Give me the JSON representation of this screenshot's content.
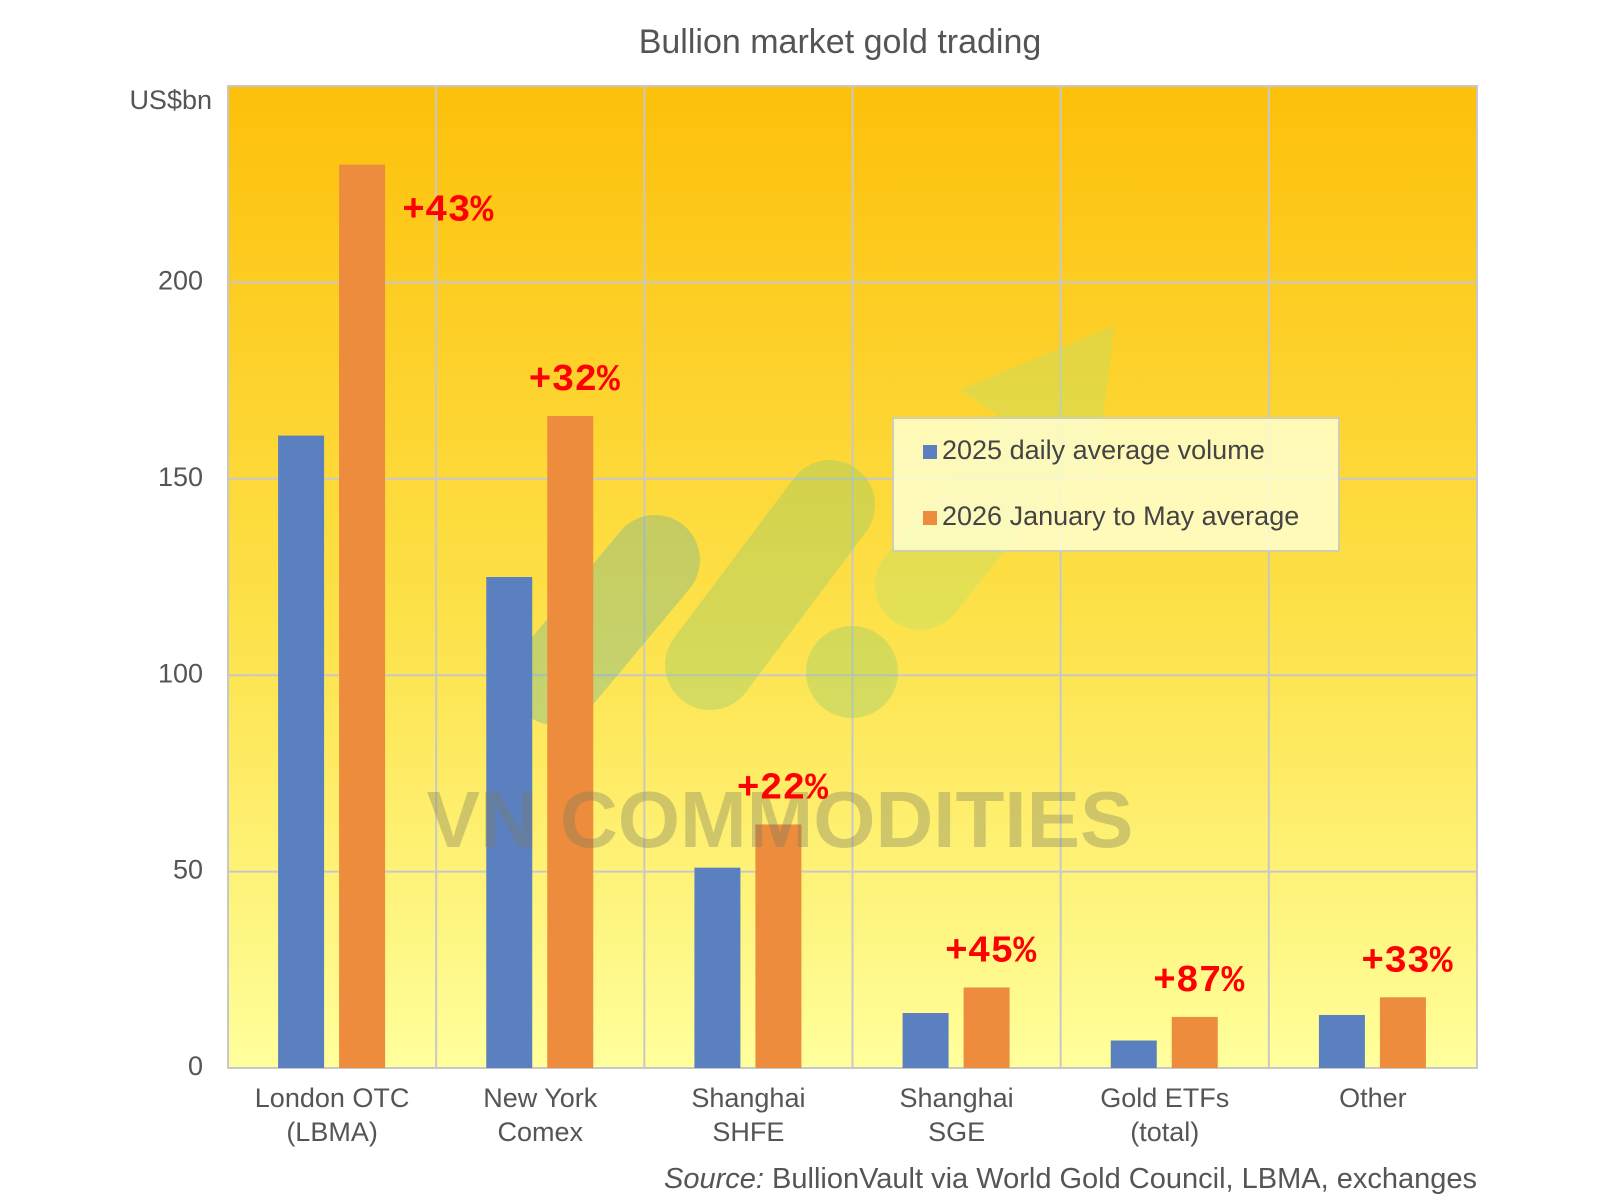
{
  "chart_data": {
    "type": "bar",
    "title": "Bullion market gold trading",
    "y_label": "US$bn",
    "categories": [
      "London OTC\n(LBMA)",
      "New York\nComex",
      "Shanghai\nSHFE",
      "Shanghai\nSGE",
      "Gold ETFs\n(total)",
      "Other"
    ],
    "series": [
      {
        "name": "2025 daily average volume",
        "color": "#5b80c0",
        "values": [
          161,
          125,
          51,
          14,
          7,
          13.5
        ]
      },
      {
        "name": "2026 January to May average",
        "color": "#ed8c3c",
        "values": [
          230,
          166,
          62,
          20.5,
          13,
          18
        ]
      }
    ],
    "annotations": [
      "+43%",
      "+32%",
      "+22%",
      "+45%",
      "+87%",
      "+33%"
    ],
    "ylim": [
      0,
      250
    ],
    "yticks": [
      0,
      50,
      100,
      150,
      200
    ],
    "grid": true,
    "legend_position": "upper right",
    "watermark": "VN COMMODITIES",
    "source_label": "Source:",
    "source": "BullionVault via World Gold Council, LBMA, exchanges"
  }
}
